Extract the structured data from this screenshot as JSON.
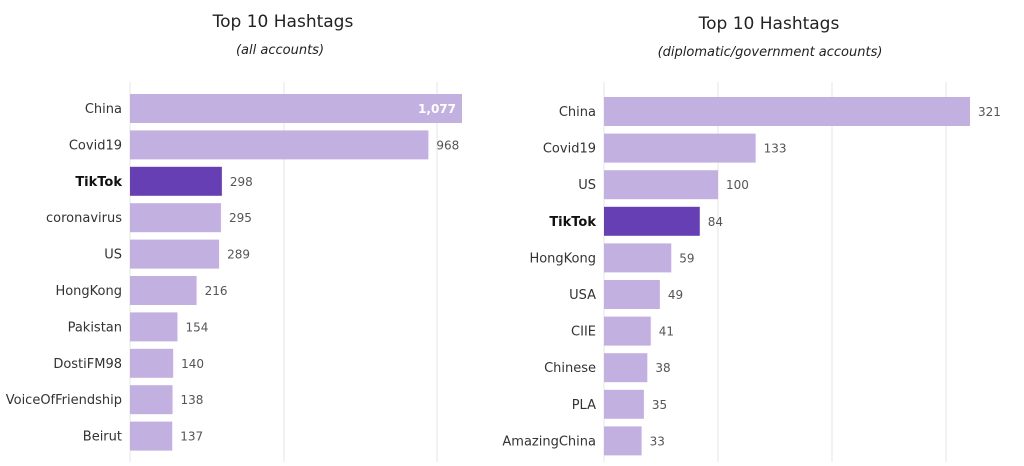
{
  "colors": {
    "bar": "#c2b1e0",
    "highlight_bar": "#663fb4"
  },
  "chart_data": [
    {
      "type": "bar",
      "orientation": "horizontal",
      "title": "Top 10 Hashtags",
      "subtitle": "(all accounts)",
      "categories": [
        "China",
        "Covid19",
        "TikTok",
        "coronavirus",
        "US",
        "HongKong",
        "Pakistan",
        "DostiFM98",
        "VoiceOfFriendship",
        "Beirut"
      ],
      "values": [
        1077,
        968,
        298,
        295,
        289,
        216,
        154,
        140,
        138,
        137
      ],
      "value_labels": [
        "1,077",
        "968",
        "298",
        "295",
        "289",
        "216",
        "154",
        "140",
        "138",
        "137"
      ],
      "highlight": "TikTok",
      "xlim": [
        0,
        1100
      ],
      "grid": true
    },
    {
      "type": "bar",
      "orientation": "horizontal",
      "title": "Top 10 Hashtags",
      "subtitle": "(diplomatic/government accounts)",
      "categories": [
        "China",
        "Covid19",
        "US",
        "TikTok",
        "HongKong",
        "USA",
        "CIIE",
        "Chinese",
        "PLA",
        "AmazingChina"
      ],
      "values": [
        321,
        133,
        100,
        84,
        59,
        49,
        41,
        38,
        35,
        33
      ],
      "value_labels": [
        "321",
        "133",
        "100",
        "84",
        "59",
        "49",
        "41",
        "38",
        "35",
        "33"
      ],
      "highlight": "TikTok",
      "xlim": [
        0,
        350
      ],
      "grid": true
    }
  ]
}
